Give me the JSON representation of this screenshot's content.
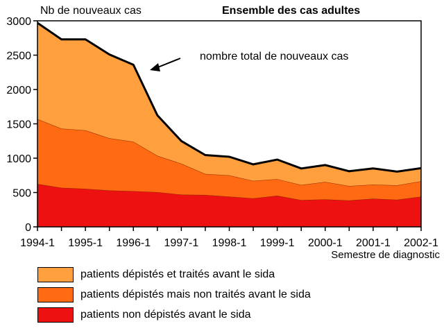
{
  "chart_data": {
    "type": "area",
    "stacked": true,
    "title": "Ensemble des cas adultes",
    "ylabel": "Nb de nouveaux cas",
    "xlabel": "Semestre de diagnostic",
    "ylim": [
      0,
      3000
    ],
    "yticks": [
      "0",
      "500",
      "1000",
      "1500",
      "2000",
      "2500",
      "3000"
    ],
    "x_tick_labels": [
      "1994-1",
      "1995-1",
      "1996-1",
      "1997-1",
      "1998-1",
      "1999-1",
      "2000-1",
      "2001-1",
      "2002-1"
    ],
    "x": [
      "1994-1",
      "1994-2",
      "1995-1",
      "1995-2",
      "1996-1",
      "1996-2",
      "1997-1",
      "1997-2",
      "1998-1",
      "1998-2",
      "1999-1",
      "1999-2",
      "2000-1",
      "2000-2",
      "2001-1",
      "2001-2",
      "2002-1"
    ],
    "series": [
      {
        "name": "patients non dépistés avant le sida",
        "color": "#ee1111",
        "values": [
          625,
          570,
          555,
          530,
          520,
          505,
          470,
          465,
          440,
          415,
          455,
          390,
          400,
          385,
          410,
          395,
          440
        ]
      },
      {
        "name": "patients dépistés mais non traités avant le sida",
        "color": "#ff6a12",
        "values": [
          945,
          860,
          850,
          760,
          720,
          530,
          450,
          305,
          310,
          255,
          240,
          220,
          255,
          210,
          205,
          210,
          225
        ]
      },
      {
        "name": "patients dépistés et traités avant le sida",
        "color": "#ff9f3e",
        "values": [
          1400,
          1300,
          1325,
          1220,
          1120,
          590,
          330,
          275,
          270,
          240,
          285,
          240,
          245,
          215,
          235,
          200,
          190
        ]
      }
    ],
    "total_line_label": "nombre total de nouveaux cas",
    "grid": false
  }
}
